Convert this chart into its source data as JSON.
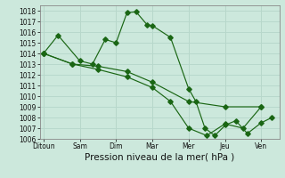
{
  "xlabel": "Pression niveau de la mer( hPa )",
  "background_color": "#cce8dc",
  "grid_color": "#b8d8cc",
  "line_color": "#1a6614",
  "ylim": [
    1006,
    1018.5
  ],
  "yticks": [
    1006,
    1007,
    1008,
    1009,
    1010,
    1011,
    1012,
    1013,
    1014,
    1015,
    1016,
    1017,
    1018
  ],
  "x_labels": [
    "Ditoun",
    "Sam",
    "Dim",
    "Mar",
    "Mer",
    "Jeu",
    "Ven"
  ],
  "x_positions": [
    0,
    1,
    2,
    3,
    4,
    5,
    6
  ],
  "series": [
    {
      "x": [
        0.0,
        0.4,
        1.0,
        1.35,
        1.7,
        2.0,
        2.3,
        2.55,
        2.85,
        3.0,
        3.5,
        4.0,
        4.2,
        4.45,
        4.72,
        5.02,
        5.3,
        5.62,
        6.0,
        6.3
      ],
      "y": [
        1014.0,
        1015.7,
        1013.3,
        1013.0,
        1015.3,
        1015.0,
        1017.8,
        1017.9,
        1016.7,
        1016.6,
        1015.5,
        1010.7,
        1009.5,
        1007.0,
        1006.3,
        1007.3,
        1007.7,
        1006.5,
        1007.5,
        1008.0
      ]
    },
    {
      "x": [
        0.0,
        0.8,
        1.5,
        2.3,
        3.0,
        4.0,
        5.0,
        6.0
      ],
      "y": [
        1014.0,
        1013.0,
        1012.8,
        1012.3,
        1011.3,
        1009.5,
        1009.0,
        1009.0
      ]
    },
    {
      "x": [
        0.0,
        0.8,
        1.5,
        2.3,
        3.0,
        3.5,
        4.0,
        4.5,
        5.0,
        5.5,
        6.0
      ],
      "y": [
        1014.0,
        1013.0,
        1012.5,
        1011.8,
        1010.8,
        1009.5,
        1007.0,
        1006.3,
        1007.4,
        1007.0,
        1009.0
      ]
    }
  ]
}
